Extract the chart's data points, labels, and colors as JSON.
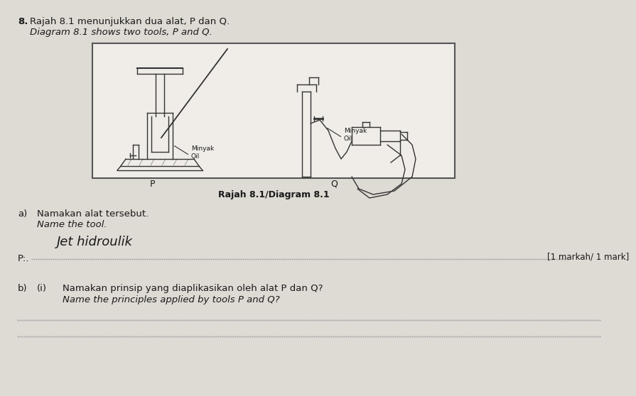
{
  "background_color": "#c8c4bc",
  "page_color": "#dedad4",
  "question_number": "8.",
  "title_malay": "Rajah 8.1 menunjukkan dua alat, P dan Q.",
  "title_english": "Diagram 8.1 shows two tools, P and Q.",
  "diagram_caption": "Rajah 8.1/Diagram 8.1",
  "part_a_malay": "a)",
  "part_a_malay2": "Namakan alat tersebut.",
  "part_a_english": "Name the tool.",
  "part_a_answer": "Jet hidroulik",
  "part_a_label": "P:.",
  "part_a_mark": "[1 markah/ 1 mark]",
  "part_b_num": "b)",
  "part_b_sub": "(i)",
  "part_b_malay": "Namakan prinsip yang diaplikasikan oleh alat P dan Q?",
  "part_b_english": "Name the principles applied by tools P and Q?",
  "label_p": "P",
  "label_q": "Q",
  "label_minyak_p": "Minyak\nOil",
  "label_minyak_q": "Minyak\nOil",
  "box_color": "#f0ede8",
  "box_edge": "#555555",
  "text_color": "#1a1a1a",
  "draw_color": "#333333",
  "dot_color": "#999999"
}
